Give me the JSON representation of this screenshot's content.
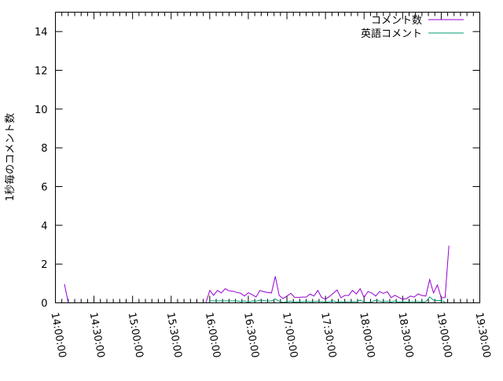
{
  "chart_data": {
    "type": "line",
    "title": "",
    "xlabel": "",
    "ylabel": "1秒毎のコメント数",
    "xlim": [
      "14:00:00",
      "19:30:00"
    ],
    "ylim": [
      0,
      15
    ],
    "x_ticks": [
      "14:00:00",
      "14:30:00",
      "15:00:00",
      "15:30:00",
      "16:00:00",
      "16:30:00",
      "17:00:00",
      "17:30:00",
      "18:00:00",
      "18:30:00",
      "19:00:00",
      "19:30:00"
    ],
    "y_ticks": [
      0,
      2,
      4,
      6,
      8,
      10,
      12,
      14
    ],
    "y_tick_labels": [
      "0",
      "2",
      "4",
      "6",
      "8",
      "10",
      "12",
      "14"
    ],
    "grid": false,
    "legend_position": "top-right",
    "series": [
      {
        "name": "コメント数",
        "color": "#9400d3",
        "points": [
          [
            "14:07:00",
            0.97
          ],
          [
            "14:10:00",
            0
          ],
          [
            "15:57:00",
            0
          ],
          [
            "16:00:00",
            0.64
          ],
          [
            "16:03:00",
            0.39
          ],
          [
            "16:06:00",
            0.64
          ],
          [
            "16:09:00",
            0.51
          ],
          [
            "16:12:00",
            0.73
          ],
          [
            "16:15:00",
            0.62
          ],
          [
            "16:18:00",
            0.6
          ],
          [
            "16:21:00",
            0.54
          ],
          [
            "16:24:00",
            0.5
          ],
          [
            "16:27:00",
            0.35
          ],
          [
            "16:30:00",
            0.52
          ],
          [
            "16:33:00",
            0.42
          ],
          [
            "16:36:00",
            0.3
          ],
          [
            "16:39:00",
            0.64
          ],
          [
            "16:42:00",
            0.57
          ],
          [
            "16:45:00",
            0.54
          ],
          [
            "16:48:00",
            0.51
          ],
          [
            "16:51:00",
            1.37
          ],
          [
            "16:54:00",
            0.38
          ],
          [
            "16:57:00",
            0.22
          ],
          [
            "17:00:00",
            0.35
          ],
          [
            "17:03:00",
            0.49
          ],
          [
            "17:06:00",
            0.28
          ],
          [
            "17:09:00",
            0.28
          ],
          [
            "17:12:00",
            0.3
          ],
          [
            "17:15:00",
            0.3
          ],
          [
            "17:18:00",
            0.45
          ],
          [
            "17:21:00",
            0.35
          ],
          [
            "17:24:00",
            0.64
          ],
          [
            "17:27:00",
            0.28
          ],
          [
            "17:30:00",
            0.19
          ],
          [
            "17:33:00",
            0.32
          ],
          [
            "17:36:00",
            0.49
          ],
          [
            "17:39:00",
            0.66
          ],
          [
            "17:42:00",
            0.26
          ],
          [
            "17:45:00",
            0.38
          ],
          [
            "17:48:00",
            0.38
          ],
          [
            "17:51:00",
            0.64
          ],
          [
            "17:54:00",
            0.46
          ],
          [
            "17:57:00",
            0.73
          ],
          [
            "18:00:00",
            0.28
          ],
          [
            "18:03:00",
            0.58
          ],
          [
            "18:06:00",
            0.51
          ],
          [
            "18:09:00",
            0.35
          ],
          [
            "18:12:00",
            0.58
          ],
          [
            "18:15:00",
            0.49
          ],
          [
            "18:18:00",
            0.58
          ],
          [
            "18:21:00",
            0.27
          ],
          [
            "18:24:00",
            0.39
          ],
          [
            "18:27:00",
            0.28
          ],
          [
            "18:30:00",
            0.19
          ],
          [
            "18:33:00",
            0.22
          ],
          [
            "18:36:00",
            0.35
          ],
          [
            "18:39:00",
            0.3
          ],
          [
            "18:42:00",
            0.46
          ],
          [
            "18:45:00",
            0.38
          ],
          [
            "18:48:00",
            0.35
          ],
          [
            "18:51:00",
            1.2
          ],
          [
            "18:54:00",
            0.51
          ],
          [
            "18:57:00",
            0.92
          ],
          [
            "19:00:00",
            0.26
          ],
          [
            "19:03:00",
            0.27
          ],
          [
            "19:06:00",
            2.95
          ]
        ]
      },
      {
        "name": "英語コメント",
        "color": "#009e73",
        "points": [
          [
            "16:00:00",
            0.1
          ],
          [
            "16:03:00",
            0.1
          ],
          [
            "16:06:00",
            0.1
          ],
          [
            "16:09:00",
            0.1
          ],
          [
            "16:12:00",
            0.1
          ],
          [
            "16:15:00",
            0.1
          ],
          [
            "16:18:00",
            0.1
          ],
          [
            "16:21:00",
            0.1
          ],
          [
            "16:24:00",
            0.06
          ],
          [
            "16:27:00",
            0.1
          ],
          [
            "16:30:00",
            0.02
          ],
          [
            "16:33:00",
            0.1
          ],
          [
            "16:36:00",
            0.08
          ],
          [
            "16:39:00",
            0.14
          ],
          [
            "16:42:00",
            0.12
          ],
          [
            "16:45:00",
            0.08
          ],
          [
            "16:48:00",
            0.1
          ],
          [
            "16:51:00",
            0.2
          ],
          [
            "16:54:00",
            0.08
          ],
          [
            "16:57:00",
            0.02
          ],
          [
            "17:00:00",
            0.06
          ],
          [
            "17:03:00",
            0.08
          ],
          [
            "17:06:00",
            0.04
          ],
          [
            "17:09:00",
            0.06
          ],
          [
            "17:12:00",
            0.06
          ],
          [
            "17:15:00",
            0.08
          ],
          [
            "17:18:00",
            0.06
          ],
          [
            "17:21:00",
            0.06
          ],
          [
            "17:24:00",
            0.08
          ],
          [
            "17:27:00",
            0.06
          ],
          [
            "17:30:00",
            0.04
          ],
          [
            "17:33:00",
            0.06
          ],
          [
            "17:36:00",
            0.1
          ],
          [
            "17:39:00",
            0.04
          ],
          [
            "17:42:00",
            0.06
          ],
          [
            "17:45:00",
            0.04
          ],
          [
            "17:48:00",
            0.06
          ],
          [
            "17:51:00",
            0.06
          ],
          [
            "17:54:00",
            0.06
          ],
          [
            "17:57:00",
            0.14
          ],
          [
            "18:00:00",
            0.04
          ],
          [
            "18:03:00",
            0.02
          ],
          [
            "18:06:00",
            0.04
          ],
          [
            "18:09:00",
            0.14
          ],
          [
            "18:12:00",
            0.08
          ],
          [
            "18:15:00",
            0.06
          ],
          [
            "18:18:00",
            0.08
          ],
          [
            "18:21:00",
            0.04
          ],
          [
            "18:24:00",
            0.1
          ],
          [
            "18:27:00",
            0.04
          ],
          [
            "18:30:00",
            0.06
          ],
          [
            "18:33:00",
            0.04
          ],
          [
            "18:36:00",
            0.06
          ],
          [
            "18:39:00",
            0.06
          ],
          [
            "18:42:00",
            0.06
          ],
          [
            "18:45:00",
            0.04
          ],
          [
            "18:48:00",
            0.06
          ],
          [
            "18:51:00",
            0.3
          ],
          [
            "18:54:00",
            0.14
          ],
          [
            "18:57:00",
            0.12
          ],
          [
            "19:00:00",
            0.12
          ],
          [
            "19:03:00",
            0.04
          ]
        ]
      }
    ]
  }
}
